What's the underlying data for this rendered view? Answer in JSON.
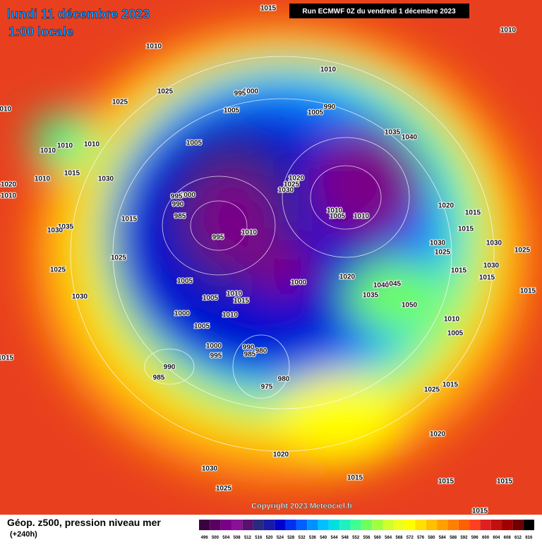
{
  "header": {
    "date": "lundi 11 décembre 2023",
    "time": "1:00 locale",
    "run": "Run ECMWF 0Z du vendredi 1 décembre 2023"
  },
  "footer": {
    "legend_title": "Géop. z500, pression niveau mer",
    "lead_time": "(+240h)",
    "copyright": "Copyright 2023 Meteociel.fr"
  },
  "scale": {
    "labels": [
      496,
      500,
      504,
      508,
      512,
      516,
      520,
      524,
      528,
      532,
      536,
      540,
      544,
      548,
      552,
      556,
      560,
      564,
      568,
      572,
      576,
      580,
      584,
      588,
      592,
      596,
      600,
      604,
      608,
      612,
      616
    ],
    "colors": [
      "#3b0040",
      "#5a0060",
      "#7a0088",
      "#8a1098",
      "#5a1070",
      "#2a2a80",
      "#1a1aa8",
      "#0000d0",
      "#0030f0",
      "#0060ff",
      "#0090ff",
      "#00c0ff",
      "#00e0e0",
      "#20f0c0",
      "#40ff90",
      "#70ff60",
      "#a0ff40",
      "#d0ff30",
      "#f0ff20",
      "#ffff00",
      "#ffe000",
      "#ffc000",
      "#ffa000",
      "#ff8000",
      "#ff6000",
      "#ff4020",
      "#e02020",
      "#c01010",
      "#a00000",
      "#700000",
      "#000000"
    ]
  },
  "isobar_labels": [
    1015,
    1010,
    1010,
    1010,
    1025,
    1025,
    1010,
    1000,
    995,
    990,
    1005,
    1005,
    1035,
    1040,
    1005,
    1010,
    1010,
    1010,
    1010,
    1015,
    1030,
    1020,
    1010,
    1020,
    1025,
    1030,
    1000,
    995,
    990,
    985,
    1010,
    1005,
    1010,
    1020,
    1015,
    1015,
    1035,
    1030,
    1010,
    995,
    1015,
    1030,
    1025,
    1030,
    1025,
    1025,
    1025,
    1015,
    1030,
    1015,
    1020,
    1045,
    1040,
    1005,
    1000,
    1010,
    1015,
    1005,
    1035,
    1030,
    1015,
    1050,
    1000,
    1010,
    1010,
    1005,
    1005,
    1000,
    995,
    990,
    985,
    980,
    1015,
    990,
    985,
    980,
    975,
    1025,
    1015,
    1020,
    1020,
    1030,
    1015,
    1015,
    1015,
    1025,
    1015
  ]
}
